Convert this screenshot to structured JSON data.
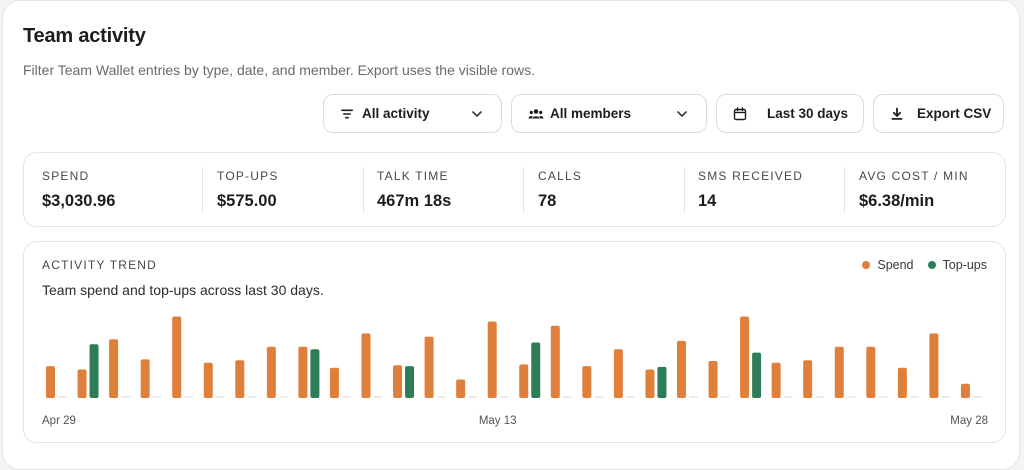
{
  "header": {
    "title": "Team activity",
    "subtitle": "Filter Team Wallet entries by type, date, and member. Export uses the visible rows."
  },
  "filters": {
    "activity_label": "All activity",
    "members_label": "All members",
    "date_label": "Last 30 days",
    "export_label": "Export CSV"
  },
  "stats": [
    {
      "label": "SPEND",
      "value": "$3,030.96"
    },
    {
      "label": "TOP-UPS",
      "value": "$575.00"
    },
    {
      "label": "TALK TIME",
      "value": "467m 18s"
    },
    {
      "label": "CALLS",
      "value": "78"
    },
    {
      "label": "SMS RECEIVED",
      "value": "14"
    },
    {
      "label": "AVG COST / MIN",
      "value": "$6.38/min"
    }
  ],
  "trend": {
    "title": "ACTIVITY TREND",
    "subtitle": "Team spend and top-ups across last 30 days.",
    "legend": [
      {
        "name": "Spend",
        "color": "#e07f3a"
      },
      {
        "name": "Top-ups",
        "color": "#2e7d57"
      }
    ]
  },
  "chart_data": {
    "type": "bar",
    "x_labels": [
      "Apr 29",
      "May 13",
      "May 28"
    ],
    "x_label_index": [
      0,
      14,
      29
    ],
    "ylim": [
      0,
      100
    ],
    "grid": false,
    "legend_position": "top-right",
    "series": [
      {
        "name": "Spend",
        "color": "#e07f3a",
        "values": [
          38,
          34,
          70,
          46,
          97,
          42,
          45,
          61,
          61,
          36,
          77,
          39,
          73,
          22,
          91,
          40,
          86,
          38,
          58,
          34,
          68,
          44,
          97,
          42,
          45,
          61,
          61,
          36,
          77,
          17
        ]
      },
      {
        "name": "Top-ups",
        "color": "#2e7d57",
        "values": [
          0,
          64,
          0,
          0,
          0,
          0,
          0,
          0,
          58,
          0,
          0,
          38,
          0,
          0,
          0,
          66,
          0,
          0,
          0,
          37,
          0,
          0,
          54,
          0,
          0,
          0,
          0,
          0,
          0,
          0
        ]
      }
    ]
  }
}
